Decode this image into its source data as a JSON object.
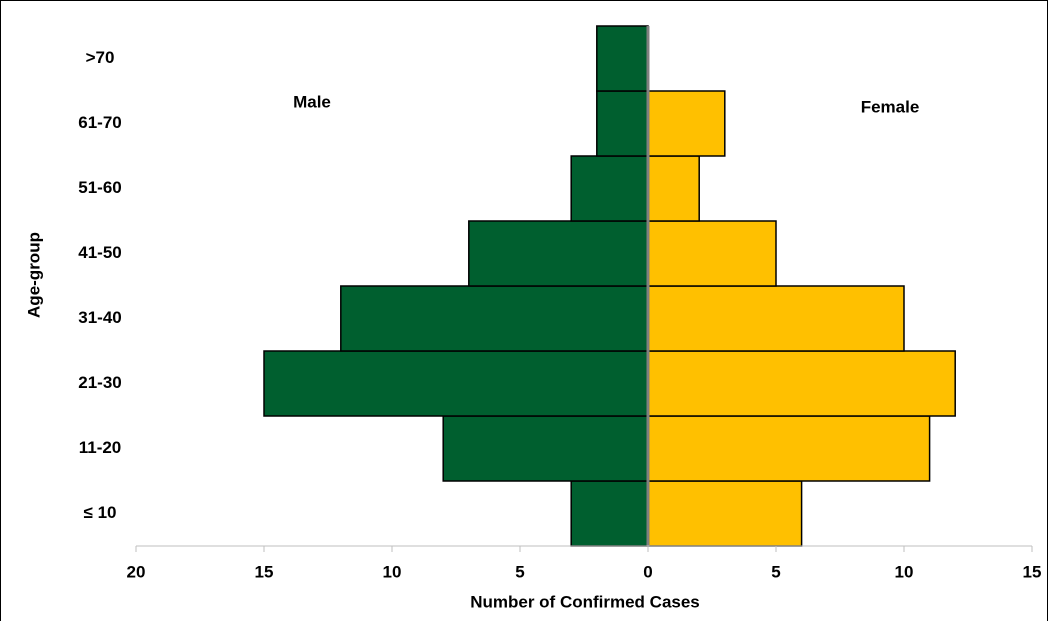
{
  "chart_data": {
    "type": "pyramid",
    "x_label": "Number of Confirmed Cases",
    "y_label": "Age-group",
    "categories": [
      "≤ 10",
      "11-20",
      "21-30",
      "31-40",
      "41-50",
      "51-60",
      "61-70",
      ">70"
    ],
    "series": [
      {
        "name": "Male",
        "color": "#005f2f",
        "values": [
          -3,
          -8,
          -15,
          -12,
          -7,
          -3,
          -2,
          -2
        ]
      },
      {
        "name": "Female",
        "color": "#ffc000",
        "values": [
          6,
          11,
          12,
          10,
          5,
          2,
          3,
          0
        ]
      }
    ],
    "xlim": [
      -20,
      15
    ],
    "xticks": [
      {
        "value": -20,
        "label": "20"
      },
      {
        "value": -15,
        "label": "15"
      },
      {
        "value": -10,
        "label": "10"
      },
      {
        "value": -5,
        "label": "5"
      },
      0,
      5,
      10,
      15
    ],
    "grid": false
  }
}
